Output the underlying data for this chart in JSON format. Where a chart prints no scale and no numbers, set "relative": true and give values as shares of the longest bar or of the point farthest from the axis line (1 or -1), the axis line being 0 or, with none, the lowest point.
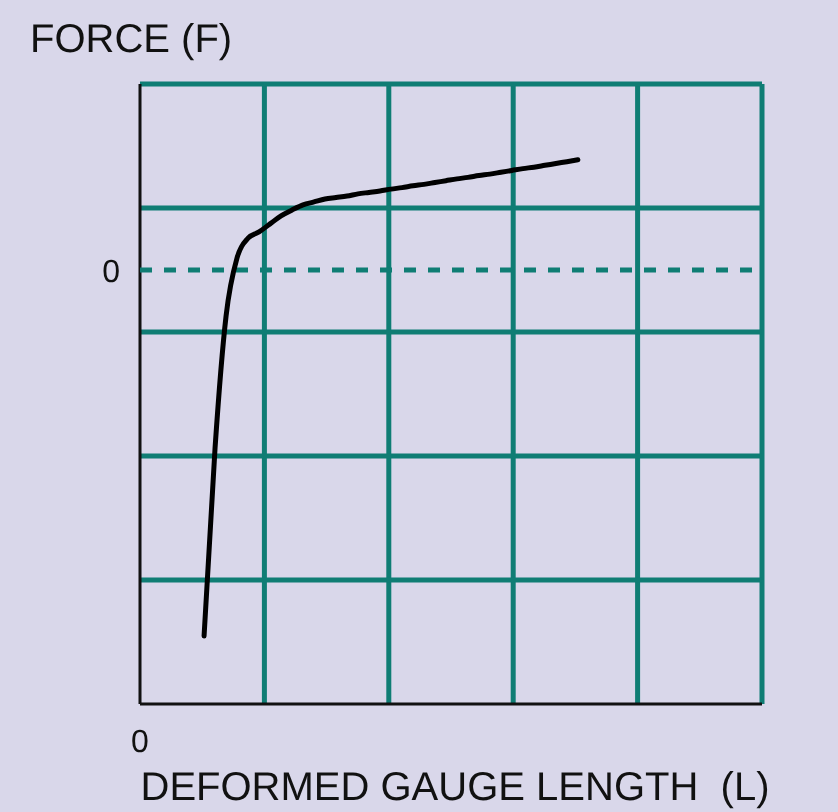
{
  "chart_data": {
    "type": "line",
    "relative": true,
    "ylabel": "FORCE (F)",
    "xlabel": "DEFORMED GAUGE LENGTH  (L)",
    "categories": [
      null,
      null,
      null,
      null,
      null,
      null,
      null,
      null,
      null,
      null,
      null,
      null,
      null,
      null,
      null,
      null,
      null,
      null,
      null,
      null,
      null,
      null,
      null,
      null,
      null,
      null,
      null,
      null,
      null,
      null,
      null,
      null,
      null,
      null,
      null
    ],
    "series": [
      {
        "color": "#000000",
        "values": [
          -1,
          -0.486,
          -0.126,
          0.033,
          0.087,
          0.104,
          0.126,
          0.148,
          0.164,
          0.178,
          0.186,
          0.194,
          0.198,
          0.202,
          0.208,
          0.212,
          0.216,
          0.221,
          0.225,
          0.23,
          0.234,
          0.239,
          0.244,
          0.249,
          0.253,
          0.258,
          0.262,
          0.267,
          0.272,
          0.277,
          0.281,
          0.286,
          0.291,
          0.296,
          0.301
        ]
      }
    ],
    "ref_lines": [
      {
        "axis": "y",
        "value": 0,
        "label": "0",
        "color": "#0f7d74",
        "line_style": "dashed"
      }
    ],
    "annotations": [
      "0"
    ],
    "grid": true,
    "marker": "none",
    "line_style": "solid"
  }
}
